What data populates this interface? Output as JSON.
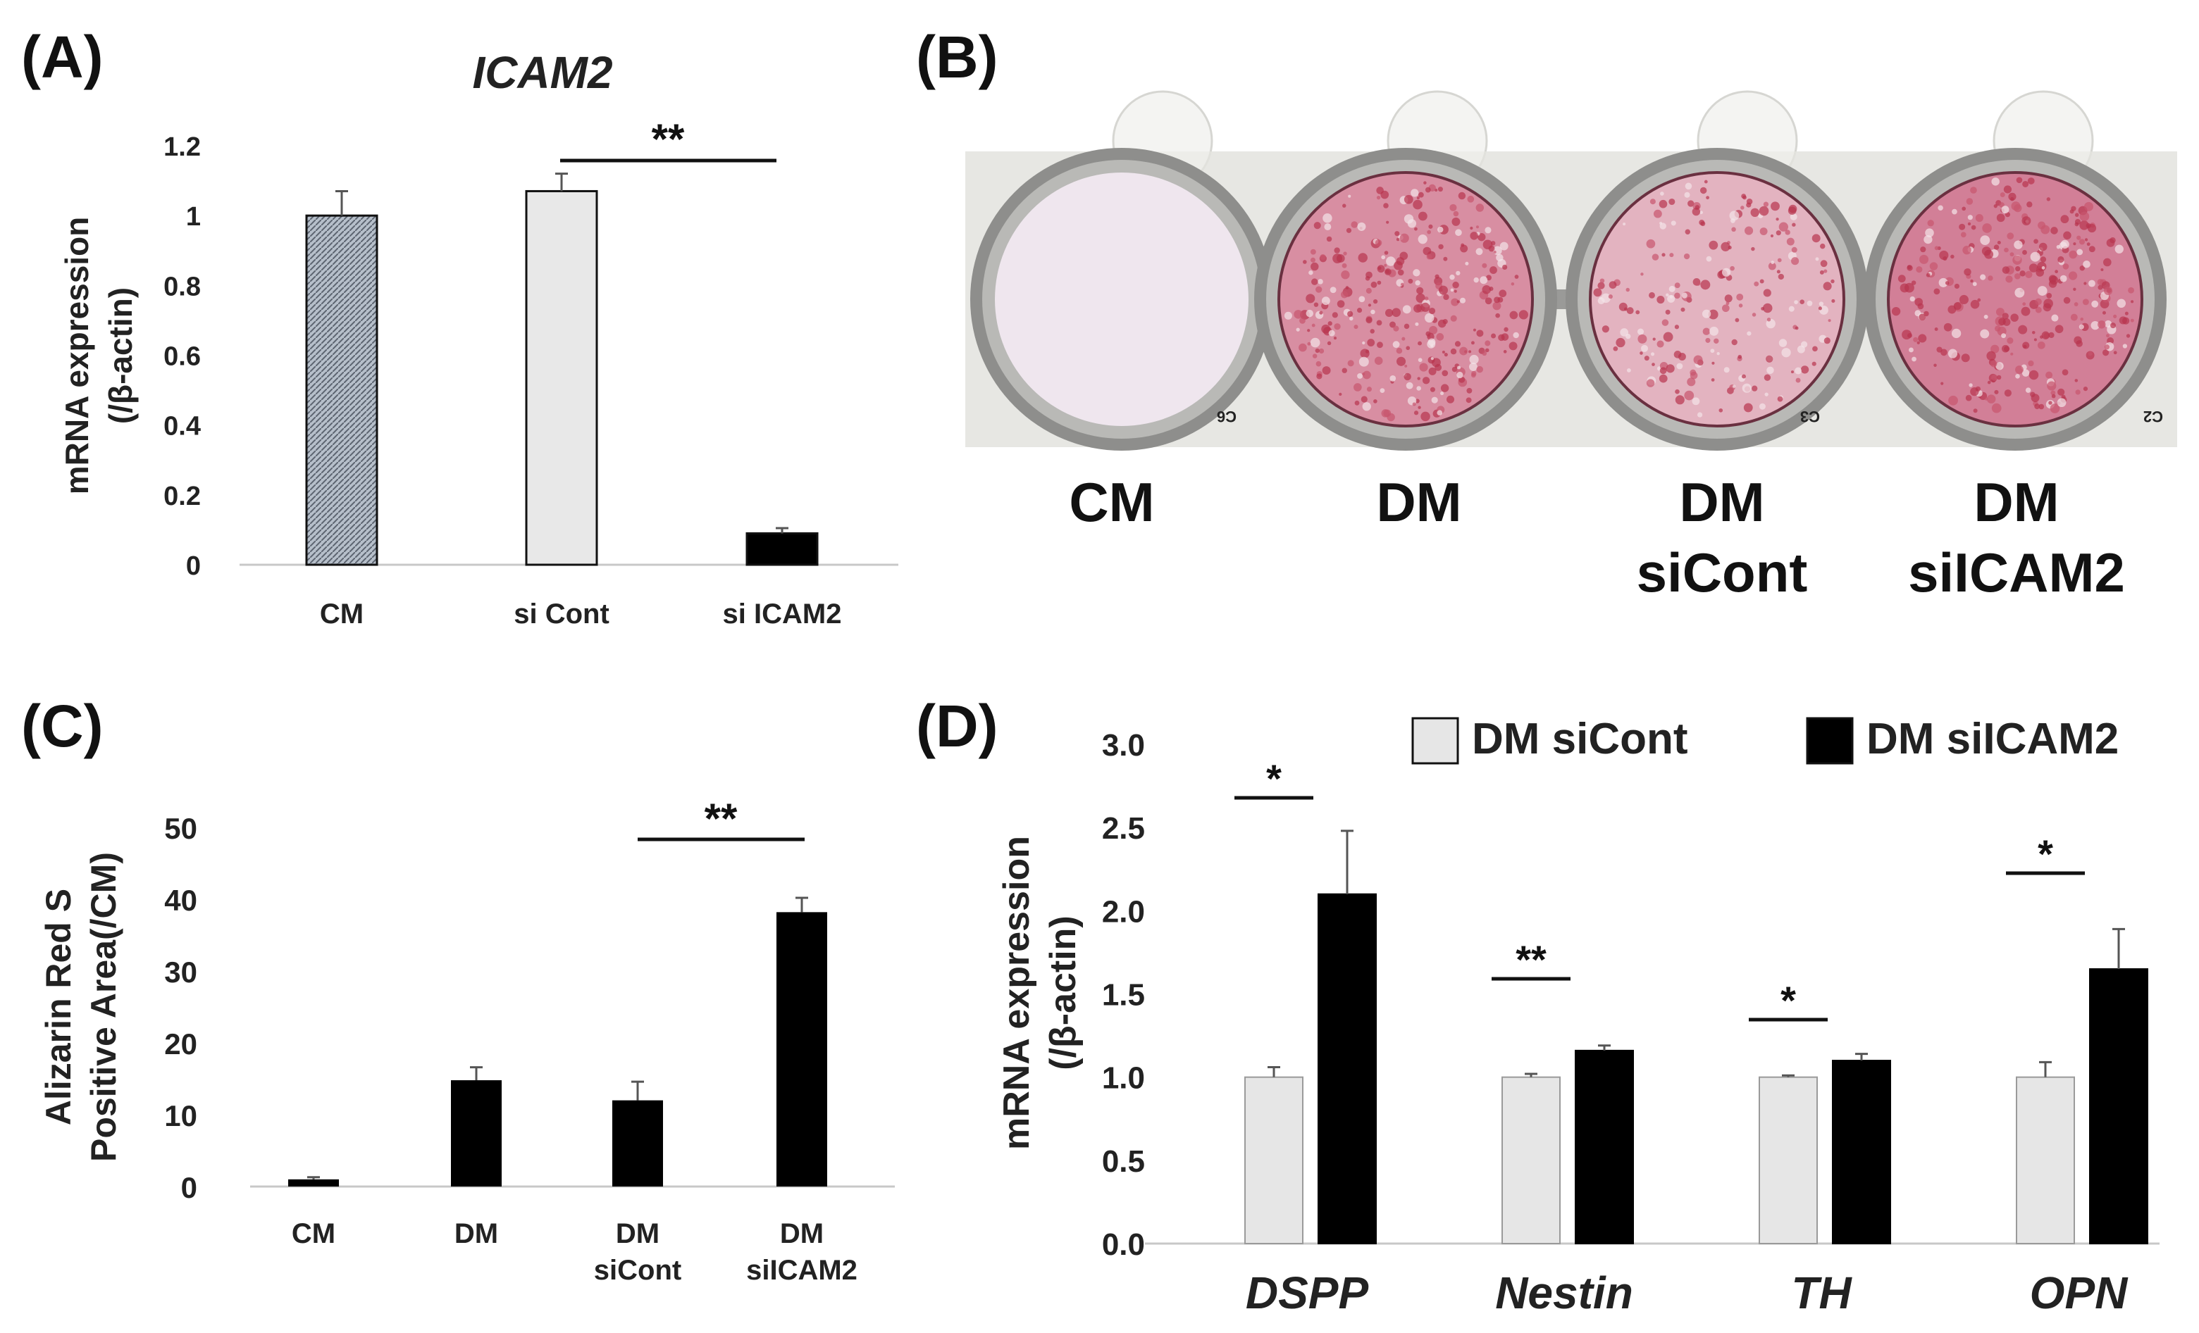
{
  "panels": {
    "A": "(A)",
    "B": "(B)",
    "C": "(C)",
    "D": "(D)"
  },
  "photo": {
    "wells": [
      "CM",
      "DM",
      "DM\nsiCont",
      "DM\nsiICAM2"
    ],
    "well_colors": [
      "#efe6ee",
      "#d88ea2",
      "#e3b3c0",
      "#d27f97"
    ],
    "well_codes": [
      "C6",
      "C3",
      "C2"
    ]
  },
  "chart_data": [
    {
      "id": "A",
      "type": "bar",
      "title": "ICAM2",
      "ylabel": [
        "mRNA expression",
        "(/β-actin)"
      ],
      "xlabel": "",
      "categories": [
        "CM",
        "si Cont",
        "si ICAM2"
      ],
      "values": [
        1.0,
        1.07,
        0.09
      ],
      "errors": [
        0.07,
        0.05,
        0.015
      ],
      "bar_colors": [
        "#a7b0bc",
        "#e8e8e8",
        "#000000"
      ],
      "ylim": [
        0,
        1.2
      ],
      "yticks": [
        "0",
        "0.2",
        "0.4",
        "0.6",
        "0.8",
        "1",
        "1.2"
      ],
      "significance": [
        {
          "from": 1,
          "to": 2,
          "label": "**"
        }
      ],
      "grid": false
    },
    {
      "id": "C",
      "type": "bar",
      "title": "",
      "ylabel": [
        "Alizarin Red S",
        "Positive Area(/CM)"
      ],
      "xlabel": "",
      "categories": [
        "CM",
        "DM",
        "DM\nsiCont",
        "DM\nsiICAM2"
      ],
      "values": [
        1.0,
        14.8,
        12.0,
        38.2
      ],
      "errors": [
        0.3,
        1.8,
        2.6,
        2.0
      ],
      "bar_colors": [
        "#000000",
        "#000000",
        "#000000",
        "#000000"
      ],
      "ylim": [
        0,
        50
      ],
      "yticks": [
        "0",
        "10",
        "20",
        "30",
        "40",
        "50"
      ],
      "significance": [
        {
          "from": 2,
          "to": 3,
          "label": "**"
        }
      ],
      "grid": false
    },
    {
      "id": "D",
      "type": "bar",
      "title": "",
      "ylabel": [
        "mRNA expression",
        "(/β-actin)"
      ],
      "xlabel": "",
      "categories": [
        "DSPP",
        "Nestin",
        "TH",
        "OPN"
      ],
      "series": [
        {
          "name": "DM siCont",
          "values": [
            1.0,
            1.0,
            1.0,
            1.0
          ],
          "errors": [
            0.06,
            0.02,
            0.01,
            0.09
          ],
          "color": "#e6e6e6"
        },
        {
          "name": "DM siICAM2",
          "values": [
            2.1,
            1.16,
            1.1,
            1.65
          ],
          "errors": [
            0.38,
            0.03,
            0.04,
            0.24
          ],
          "color": "#000000"
        }
      ],
      "ylim": [
        0,
        3.0
      ],
      "yticks": [
        "0.0",
        "0.5",
        "1.0",
        "1.5",
        "2.0",
        "2.5",
        "3.0"
      ],
      "significance": [
        "*",
        "**",
        "*",
        "*"
      ],
      "legend": "top",
      "grid": false
    }
  ]
}
